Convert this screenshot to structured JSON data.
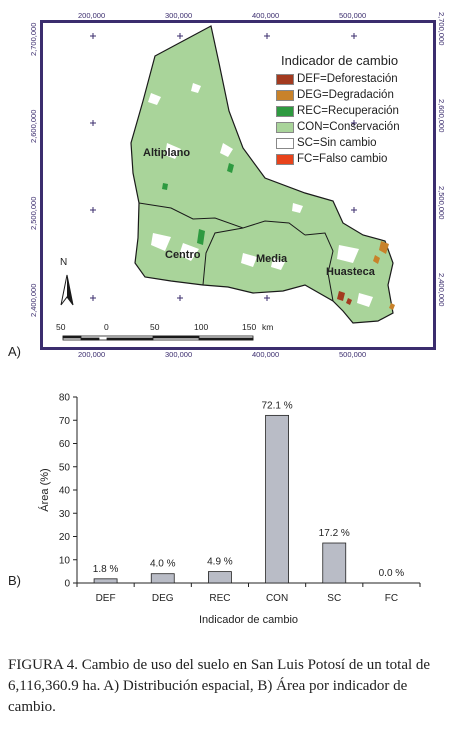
{
  "map": {
    "panel_label": "A)",
    "legend_title": "Indicador de cambio",
    "legend": [
      {
        "label": "DEF=Deforestación",
        "color": "#a33a1f"
      },
      {
        "label": "DEG=Degradación",
        "color": "#c8822a"
      },
      {
        "label": "REC=Recuperación",
        "color": "#2e9a40"
      },
      {
        "label": "CON=Conservación",
        "color": "#a9d49a"
      },
      {
        "label": "SC=Sin cambio",
        "color": "#ffffff"
      },
      {
        "label": "FC=Falso cambio",
        "color": "#e8431b"
      }
    ],
    "regions": {
      "altiplano": "Altiplano",
      "centro": "Centro",
      "media": "Media",
      "huasteca": "Huasteca"
    },
    "x_coords": [
      "200,000",
      "300,000",
      "400,000",
      "500,000"
    ],
    "y_coords": [
      "2,700,000",
      "2,600,000",
      "2,500,000",
      "2,400,000"
    ],
    "north": "N",
    "scale_labels": [
      "50",
      "0",
      "50",
      "100",
      "150"
    ],
    "scale_unit": "km"
  },
  "chart": {
    "panel_label": "B)"
  },
  "chart_data": {
    "type": "bar",
    "categories": [
      "DEF",
      "DEG",
      "REC",
      "CON",
      "SC",
      "FC"
    ],
    "values": [
      1.8,
      4.0,
      4.9,
      72.1,
      17.2,
      0.0
    ],
    "data_labels": [
      "1.8 %",
      "4.0 %",
      "4.9 %",
      "72.1 %",
      "17.2 %",
      "0.0 %"
    ],
    "xlabel": "Indicador de cambio",
    "ylabel": "Área (%)",
    "ylim": [
      0,
      80
    ],
    "yticks": [
      "0",
      "10",
      "20",
      "30",
      "40",
      "50",
      "60",
      "70",
      "80"
    ],
    "bar_color": "#b9bcc6",
    "grid": false
  },
  "caption": {
    "figure": "FIGURA 4.",
    "text": "Cambio de uso del suelo en San Luis Potosí de un total de 6,116,360.9 ha. A) Distribución espacial, B) Área por indicador de cambio."
  }
}
